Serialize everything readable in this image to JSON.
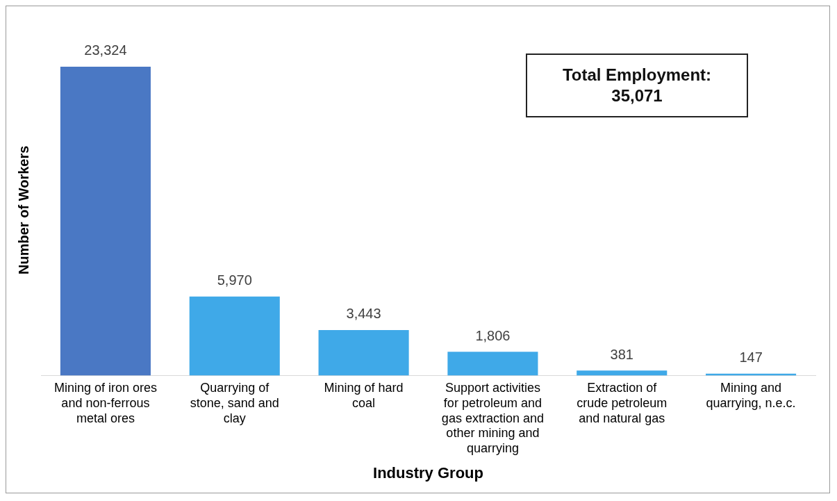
{
  "chart_data": {
    "type": "bar",
    "xlabel": "Industry Group",
    "ylabel": "Number of Workers",
    "categories": [
      "Mining of iron ores and non-ferrous metal ores",
      "Quarrying of stone, sand and clay",
      "Mining of hard coal",
      "Support activities for petroleum and gas extraction and other mining and quarrying",
      "Extraction of crude petroleum and natural gas",
      "Mining and quarrying, n.e.c."
    ],
    "values": [
      23324,
      5970,
      3443,
      1806,
      381,
      147
    ],
    "colors": [
      "#4a78c4",
      "#3fa9e8",
      "#3fa9e8",
      "#3fa9e8",
      "#3fa9e8",
      "#3fa9e8"
    ],
    "value_labels": [
      "23,324",
      "5,970",
      "3,443",
      "1,806",
      "381",
      "147"
    ],
    "legend": false,
    "grid": false,
    "annotations": [
      "Total Employment: 35,071"
    ]
  }
}
